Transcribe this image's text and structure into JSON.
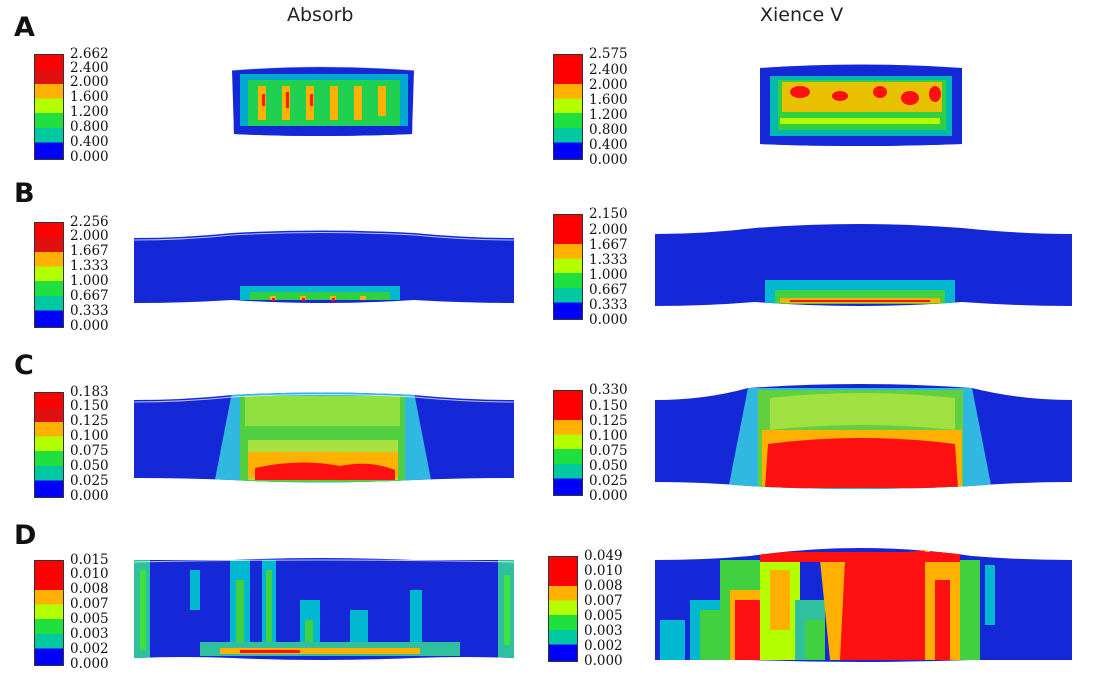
{
  "columns": [
    {
      "title": "Absorb"
    },
    {
      "title": "Xience V"
    }
  ],
  "rows": [
    {
      "letter": "A",
      "legends": [
        {
          "labels": [
            "2.662",
            "2.400",
            "2.000",
            "1.600",
            "1.200",
            "0.800",
            "0.400",
            "0.000"
          ]
        },
        {
          "labels": [
            "2.575",
            "2.400",
            "2.000",
            "1.600",
            "1.200",
            "0.800",
            "0.400",
            "0.000"
          ]
        }
      ]
    },
    {
      "letter": "B",
      "legends": [
        {
          "labels": [
            "2.256",
            "2.000",
            "1.667",
            "1.333",
            "1.000",
            "0.667",
            "0.333",
            "0.000"
          ]
        },
        {
          "labels": [
            "2.150",
            "2.000",
            "1.667",
            "1.333",
            "1.000",
            "0.667",
            "0.333",
            "0.000"
          ]
        }
      ]
    },
    {
      "letter": "C",
      "legends": [
        {
          "labels": [
            "0.183",
            "0.150",
            "0.125",
            "0.100",
            "0.075",
            "0.050",
            "0.025",
            "0.000"
          ]
        },
        {
          "labels": [
            "0.330",
            "0.150",
            "0.125",
            "0.100",
            "0.075",
            "0.050",
            "0.025",
            "0.000"
          ]
        }
      ]
    },
    {
      "letter": "D",
      "legends": [
        {
          "labels": [
            "0.015",
            "0.010",
            "0.008",
            "0.007",
            "0.005",
            "0.003",
            "0.002",
            "0.000"
          ]
        },
        {
          "labels": [
            "0.049",
            "0.010",
            "0.008",
            "0.007",
            "0.005",
            "0.003",
            "0.002",
            "0.000"
          ]
        }
      ]
    }
  ],
  "colormap": [
    "#ff0000",
    "#ffb000",
    "#b4ff00",
    "#20e040",
    "#00c8a0",
    "#0090ff",
    "#0000ff"
  ],
  "vessel_base_color": "#1428d8"
}
